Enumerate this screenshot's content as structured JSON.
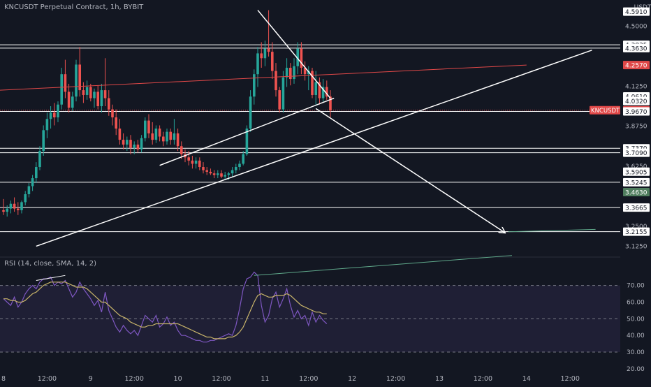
{
  "header": {
    "symbol": "KNCUSDT Perpetual Contract",
    "interval": "1h",
    "exchange": "BYBIT"
  },
  "currency_label": "USDT",
  "rsi_header": "RSI (14, close, SMA, 14, 2)",
  "colors": {
    "background": "#131722",
    "up": "#26a69a",
    "down": "#ef5350",
    "rsi": "#7e57c2",
    "rsi_ma": "#c8b46a",
    "red_line": "#e04848",
    "green_line": "#5fa88a",
    "white": "#ffffff",
    "neutral_tag": "#ffffff",
    "current_tag": "#e04848",
    "green_tag": "#4f7d5e"
  },
  "chart_data": [
    {
      "type": "candlestick",
      "title": "",
      "price_axis": {
        "min": 3.07,
        "max": 4.62,
        "ticks": [
          4.5,
          4.125,
          3.875,
          3.625,
          3.25,
          3.125
        ]
      },
      "time_axis": {
        "labels": [
          {
            "bar": 0,
            "text": "8"
          },
          {
            "bar": 12,
            "text": "12:00"
          },
          {
            "bar": 24,
            "text": "9"
          },
          {
            "bar": 36,
            "text": "12:00"
          },
          {
            "bar": 48,
            "text": "10"
          },
          {
            "bar": 60,
            "text": "12:00"
          },
          {
            "bar": 72,
            "text": "11"
          },
          {
            "bar": 84,
            "text": "12:00"
          },
          {
            "bar": 96,
            "text": "12"
          },
          {
            "bar": 108,
            "text": "12:00"
          },
          {
            "bar": 120,
            "text": "13"
          },
          {
            "bar": 132,
            "text": "12:00"
          },
          {
            "bar": 144,
            "text": "14"
          },
          {
            "bar": 156,
            "text": "12:00"
          }
        ]
      },
      "price_tags": [
        {
          "value": 4.591,
          "label": "4.5910",
          "kind": "neutral"
        },
        {
          "value": 4.3835,
          "label": "4.3835",
          "kind": "neutral"
        },
        {
          "value": 4.363,
          "label": "4.3630",
          "kind": "neutral"
        },
        {
          "value": 4.257,
          "label": "4.2570",
          "kind": "red"
        },
        {
          "value": 4.061,
          "label": "4.0610",
          "kind": "neutral"
        },
        {
          "value": 4.032,
          "label": "4.0320",
          "kind": "neutral"
        },
        {
          "value": 3.975,
          "label": "3.9750",
          "kind": "current",
          "name": "KNCUSDT"
        },
        {
          "value": 3.967,
          "label": "3.9670",
          "kind": "neutral"
        },
        {
          "value": 3.737,
          "label": "3.7370",
          "kind": "neutral"
        },
        {
          "value": 3.709,
          "label": "3.7090",
          "kind": "neutral"
        },
        {
          "value": 3.5905,
          "label": "3.5905",
          "kind": "neutral"
        },
        {
          "value": 3.5245,
          "label": "3.5245",
          "kind": "neutral"
        },
        {
          "value": 3.463,
          "label": "3.4630",
          "kind": "green"
        },
        {
          "value": 3.3665,
          "label": "3.3665",
          "kind": "neutral"
        },
        {
          "value": 3.2155,
          "label": "3.2155",
          "kind": "neutral"
        }
      ],
      "horizontal_levels": [
        4.3835,
        4.363,
        3.967,
        3.737,
        3.709,
        3.5245,
        3.3665,
        3.2155
      ],
      "trend_lines": [
        {
          "kind": "red",
          "from": [
            -1,
            4.1
          ],
          "to": [
            144,
            4.257
          ]
        },
        {
          "kind": "white",
          "from": [
            70,
            4.6
          ],
          "to": [
            90,
            4.05
          ]
        },
        {
          "kind": "white",
          "from": [
            43,
            3.63
          ],
          "to": [
            91,
            4.05
          ]
        },
        {
          "kind": "white",
          "from": [
            9,
            3.125
          ],
          "to": [
            162,
            4.35
          ]
        },
        {
          "kind": "white",
          "from": [
            86,
            3.985
          ],
          "to": [
            138,
            3.21
          ],
          "arrow": true
        },
        {
          "kind": "green",
          "from": [
            139,
            3.215
          ],
          "to": [
            163,
            3.23
          ]
        }
      ],
      "candles": [
        {
          "o": 3.35,
          "h": 3.42,
          "l": 3.32,
          "c": 3.34
        },
        {
          "o": 3.34,
          "h": 3.38,
          "l": 3.31,
          "c": 3.36
        },
        {
          "o": 3.36,
          "h": 3.41,
          "l": 3.33,
          "c": 3.39
        },
        {
          "o": 3.39,
          "h": 3.43,
          "l": 3.34,
          "c": 3.36
        },
        {
          "o": 3.36,
          "h": 3.4,
          "l": 3.32,
          "c": 3.35
        },
        {
          "o": 3.35,
          "h": 3.41,
          "l": 3.33,
          "c": 3.4
        },
        {
          "o": 3.4,
          "h": 3.47,
          "l": 3.38,
          "c": 3.45
        },
        {
          "o": 3.45,
          "h": 3.52,
          "l": 3.43,
          "c": 3.5
        },
        {
          "o": 3.5,
          "h": 3.57,
          "l": 3.47,
          "c": 3.55
        },
        {
          "o": 3.55,
          "h": 3.65,
          "l": 3.52,
          "c": 3.62
        },
        {
          "o": 3.62,
          "h": 3.75,
          "l": 3.6,
          "c": 3.72
        },
        {
          "o": 3.72,
          "h": 3.88,
          "l": 3.69,
          "c": 3.85
        },
        {
          "o": 3.85,
          "h": 3.96,
          "l": 3.8,
          "c": 3.92
        },
        {
          "o": 3.92,
          "h": 4.0,
          "l": 3.86,
          "c": 3.96
        },
        {
          "o": 3.96,
          "h": 4.02,
          "l": 3.88,
          "c": 3.93
        },
        {
          "o": 3.93,
          "h": 4.03,
          "l": 3.9,
          "c": 4.01
        },
        {
          "o": 4.01,
          "h": 4.24,
          "l": 3.98,
          "c": 4.2
        },
        {
          "o": 4.2,
          "h": 4.29,
          "l": 4.05,
          "c": 4.09
        },
        {
          "o": 4.09,
          "h": 4.14,
          "l": 3.96,
          "c": 3.99
        },
        {
          "o": 3.99,
          "h": 4.09,
          "l": 3.97,
          "c": 4.06
        },
        {
          "o": 4.06,
          "h": 4.29,
          "l": 4.03,
          "c": 4.26
        },
        {
          "o": 4.26,
          "h": 4.37,
          "l": 4.06,
          "c": 4.1
        },
        {
          "o": 4.1,
          "h": 4.15,
          "l": 4.02,
          "c": 4.07
        },
        {
          "o": 4.07,
          "h": 4.16,
          "l": 4.04,
          "c": 4.12
        },
        {
          "o": 4.12,
          "h": 4.14,
          "l": 4.03,
          "c": 4.05
        },
        {
          "o": 4.05,
          "h": 4.11,
          "l": 3.99,
          "c": 4.09
        },
        {
          "o": 4.09,
          "h": 4.13,
          "l": 3.98,
          "c": 4.0
        },
        {
          "o": 4.0,
          "h": 4.14,
          "l": 3.96,
          "c": 4.1
        },
        {
          "o": 4.1,
          "h": 4.3,
          "l": 4.0,
          "c": 4.05
        },
        {
          "o": 4.05,
          "h": 4.1,
          "l": 3.94,
          "c": 3.98
        },
        {
          "o": 3.98,
          "h": 4.01,
          "l": 3.88,
          "c": 3.93
        },
        {
          "o": 3.93,
          "h": 3.98,
          "l": 3.82,
          "c": 3.86
        },
        {
          "o": 3.86,
          "h": 3.92,
          "l": 3.76,
          "c": 3.79
        },
        {
          "o": 3.79,
          "h": 3.83,
          "l": 3.73,
          "c": 3.76
        },
        {
          "o": 3.76,
          "h": 3.81,
          "l": 3.72,
          "c": 3.79
        },
        {
          "o": 3.79,
          "h": 3.82,
          "l": 3.7,
          "c": 3.74
        },
        {
          "o": 3.74,
          "h": 3.78,
          "l": 3.7,
          "c": 3.76
        },
        {
          "o": 3.76,
          "h": 3.79,
          "l": 3.71,
          "c": 3.73
        },
        {
          "o": 3.73,
          "h": 3.82,
          "l": 3.71,
          "c": 3.8
        },
        {
          "o": 3.8,
          "h": 3.93,
          "l": 3.78,
          "c": 3.91
        },
        {
          "o": 3.91,
          "h": 3.95,
          "l": 3.8,
          "c": 3.83
        },
        {
          "o": 3.83,
          "h": 3.9,
          "l": 3.76,
          "c": 3.79
        },
        {
          "o": 3.79,
          "h": 3.88,
          "l": 3.77,
          "c": 3.86
        },
        {
          "o": 3.86,
          "h": 3.88,
          "l": 3.78,
          "c": 3.81
        },
        {
          "o": 3.81,
          "h": 3.84,
          "l": 3.75,
          "c": 3.78
        },
        {
          "o": 3.78,
          "h": 3.86,
          "l": 3.76,
          "c": 3.84
        },
        {
          "o": 3.84,
          "h": 3.86,
          "l": 3.76,
          "c": 3.79
        },
        {
          "o": 3.79,
          "h": 3.92,
          "l": 3.76,
          "c": 3.83
        },
        {
          "o": 3.83,
          "h": 3.86,
          "l": 3.72,
          "c": 3.75
        },
        {
          "o": 3.75,
          "h": 3.78,
          "l": 3.67,
          "c": 3.7
        },
        {
          "o": 3.7,
          "h": 3.73,
          "l": 3.65,
          "c": 3.68
        },
        {
          "o": 3.68,
          "h": 3.72,
          "l": 3.63,
          "c": 3.66
        },
        {
          "o": 3.66,
          "h": 3.69,
          "l": 3.61,
          "c": 3.64
        },
        {
          "o": 3.64,
          "h": 3.68,
          "l": 3.61,
          "c": 3.66
        },
        {
          "o": 3.66,
          "h": 3.68,
          "l": 3.6,
          "c": 3.62
        },
        {
          "o": 3.62,
          "h": 3.65,
          "l": 3.58,
          "c": 3.6
        },
        {
          "o": 3.6,
          "h": 3.62,
          "l": 3.57,
          "c": 3.59
        },
        {
          "o": 3.59,
          "h": 3.61,
          "l": 3.57,
          "c": 3.58
        },
        {
          "o": 3.58,
          "h": 3.6,
          "l": 3.55,
          "c": 3.57
        },
        {
          "o": 3.57,
          "h": 3.6,
          "l": 3.55,
          "c": 3.58
        },
        {
          "o": 3.58,
          "h": 3.6,
          "l": 3.55,
          "c": 3.56
        },
        {
          "o": 3.56,
          "h": 3.59,
          "l": 3.54,
          "c": 3.57
        },
        {
          "o": 3.57,
          "h": 3.59,
          "l": 3.54,
          "c": 3.58
        },
        {
          "o": 3.58,
          "h": 3.62,
          "l": 3.56,
          "c": 3.6
        },
        {
          "o": 3.6,
          "h": 3.64,
          "l": 3.58,
          "c": 3.62
        },
        {
          "o": 3.62,
          "h": 3.66,
          "l": 3.6,
          "c": 3.64
        },
        {
          "o": 3.64,
          "h": 3.72,
          "l": 3.63,
          "c": 3.7
        },
        {
          "o": 3.7,
          "h": 3.88,
          "l": 3.69,
          "c": 3.86
        },
        {
          "o": 3.86,
          "h": 4.1,
          "l": 3.84,
          "c": 4.06
        },
        {
          "o": 4.06,
          "h": 4.23,
          "l": 4.01,
          "c": 4.2
        },
        {
          "o": 4.2,
          "h": 4.37,
          "l": 4.12,
          "c": 4.33
        },
        {
          "o": 4.33,
          "h": 4.4,
          "l": 4.24,
          "c": 4.3
        },
        {
          "o": 4.3,
          "h": 4.41,
          "l": 4.25,
          "c": 4.36
        },
        {
          "o": 4.36,
          "h": 4.6,
          "l": 4.31,
          "c": 4.34
        },
        {
          "o": 4.34,
          "h": 4.4,
          "l": 4.17,
          "c": 4.22
        },
        {
          "o": 4.22,
          "h": 4.27,
          "l": 4.06,
          "c": 4.1
        },
        {
          "o": 4.1,
          "h": 4.12,
          "l": 3.96,
          "c": 3.98
        },
        {
          "o": 3.98,
          "h": 4.22,
          "l": 3.96,
          "c": 4.18
        },
        {
          "o": 4.18,
          "h": 4.3,
          "l": 4.12,
          "c": 4.24
        },
        {
          "o": 4.24,
          "h": 4.27,
          "l": 4.13,
          "c": 4.17
        },
        {
          "o": 4.17,
          "h": 4.3,
          "l": 4.14,
          "c": 4.25
        },
        {
          "o": 4.25,
          "h": 4.4,
          "l": 4.2,
          "c": 4.36
        },
        {
          "o": 4.36,
          "h": 4.4,
          "l": 4.2,
          "c": 4.24
        },
        {
          "o": 4.24,
          "h": 4.28,
          "l": 4.16,
          "c": 4.2
        },
        {
          "o": 4.2,
          "h": 4.25,
          "l": 4.1,
          "c": 4.22
        },
        {
          "o": 4.22,
          "h": 4.24,
          "l": 4.05,
          "c": 4.07
        },
        {
          "o": 4.07,
          "h": 4.22,
          "l": 4.01,
          "c": 4.15
        },
        {
          "o": 4.15,
          "h": 4.18,
          "l": 4.01,
          "c": 4.05
        },
        {
          "o": 4.05,
          "h": 4.17,
          "l": 4.02,
          "c": 4.12
        },
        {
          "o": 4.12,
          "h": 4.16,
          "l": 4.04,
          "c": 4.06
        },
        {
          "o": 4.06,
          "h": 4.1,
          "l": 3.93,
          "c": 3.975
        }
      ]
    },
    {
      "type": "line",
      "title": "",
      "name": "RSI",
      "y_axis": {
        "min": 17,
        "max": 82,
        "ticks": [
          70,
          60,
          50,
          40,
          30,
          20
        ],
        "tick_labels": [
          "70.00",
          "60.00",
          "50.00",
          "40.00",
          "30.00",
          "20.00"
        ]
      },
      "bands": {
        "upper": 70,
        "middle": 50,
        "lower": 30
      },
      "series": [
        {
          "kind": "rsi",
          "values": [
            62,
            60,
            58,
            63,
            57,
            60,
            65,
            68,
            70,
            68,
            72,
            74,
            74,
            75,
            70,
            72,
            71,
            73,
            68,
            63,
            66,
            72,
            68,
            65,
            62,
            58,
            61,
            54,
            66,
            55,
            50,
            45,
            42,
            46,
            43,
            41,
            43,
            40,
            46,
            52,
            50,
            48,
            52,
            45,
            47,
            51,
            46,
            48,
            43,
            40,
            40,
            39,
            38,
            37,
            37,
            36,
            36,
            37,
            37,
            38,
            39,
            40,
            41,
            40,
            46,
            56,
            68,
            74,
            75,
            78,
            76,
            58,
            48,
            52,
            62,
            66,
            57,
            62,
            68,
            58,
            51,
            55,
            50,
            52,
            46,
            54,
            48,
            52,
            49,
            47
          ]
        },
        {
          "kind": "rsi_ma",
          "values": [
            62,
            62,
            61,
            61,
            60,
            60,
            61,
            63,
            65,
            66,
            68,
            70,
            71,
            72,
            72,
            72,
            72,
            72,
            71,
            70,
            69,
            69,
            69,
            68,
            66,
            64,
            62,
            60,
            60,
            58,
            56,
            54,
            52,
            51,
            50,
            48,
            47,
            46,
            45,
            45,
            46,
            46,
            47,
            47,
            47,
            47,
            47,
            47,
            47,
            46,
            45,
            44,
            43,
            42,
            41,
            40,
            39,
            39,
            38,
            38,
            38,
            38,
            39,
            39,
            40,
            42,
            45,
            50,
            55,
            60,
            64,
            65,
            64,
            63,
            63,
            64,
            64,
            64,
            65,
            64,
            62,
            60,
            58,
            57,
            56,
            55,
            54,
            54,
            53,
            53
          ]
        }
      ],
      "annotations": [
        {
          "kind": "white",
          "from": [
            9,
            73
          ],
          "to": [
            17,
            76
          ]
        },
        {
          "kind": "green",
          "from": [
            69,
            76
          ],
          "to": [
            140,
            88
          ]
        }
      ]
    }
  ]
}
